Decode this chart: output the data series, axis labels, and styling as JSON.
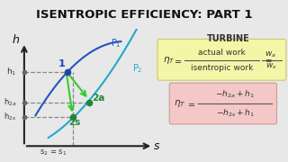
{
  "title": "ISENTROPIC EFFICIENCY: PART 1",
  "bg_color": "#e8e8e8",
  "title_fontsize": 9.5,
  "turbine_label": "TURBINE",
  "box1_bg": "#f5f5a8",
  "box2_bg": "#f5c8c8",
  "axes_color": "#222222",
  "h_axis_label": "h",
  "s_axis_label": "s",
  "p1_label": "P$_1$",
  "p2_label": "P$_2$",
  "point1_label": "1",
  "point2a_label": "2a",
  "point2s_label": "2s",
  "h1_label": "h$_1$",
  "h2a_label": "h$_{2a}$",
  "h2s_label": "h$_{2s}$",
  "s_eq_label": "s$_2$ = s$_1$",
  "curve_p1_color": "#2255bb",
  "curve_p2_color": "#22aacc",
  "arrow_color": "#33cc33",
  "dashed_color": "#888888",
  "point1_color": "#2244aa",
  "point2a_color": "#228833",
  "point2s_color": "#228833",
  "graph_bg": "#f0f0e0"
}
